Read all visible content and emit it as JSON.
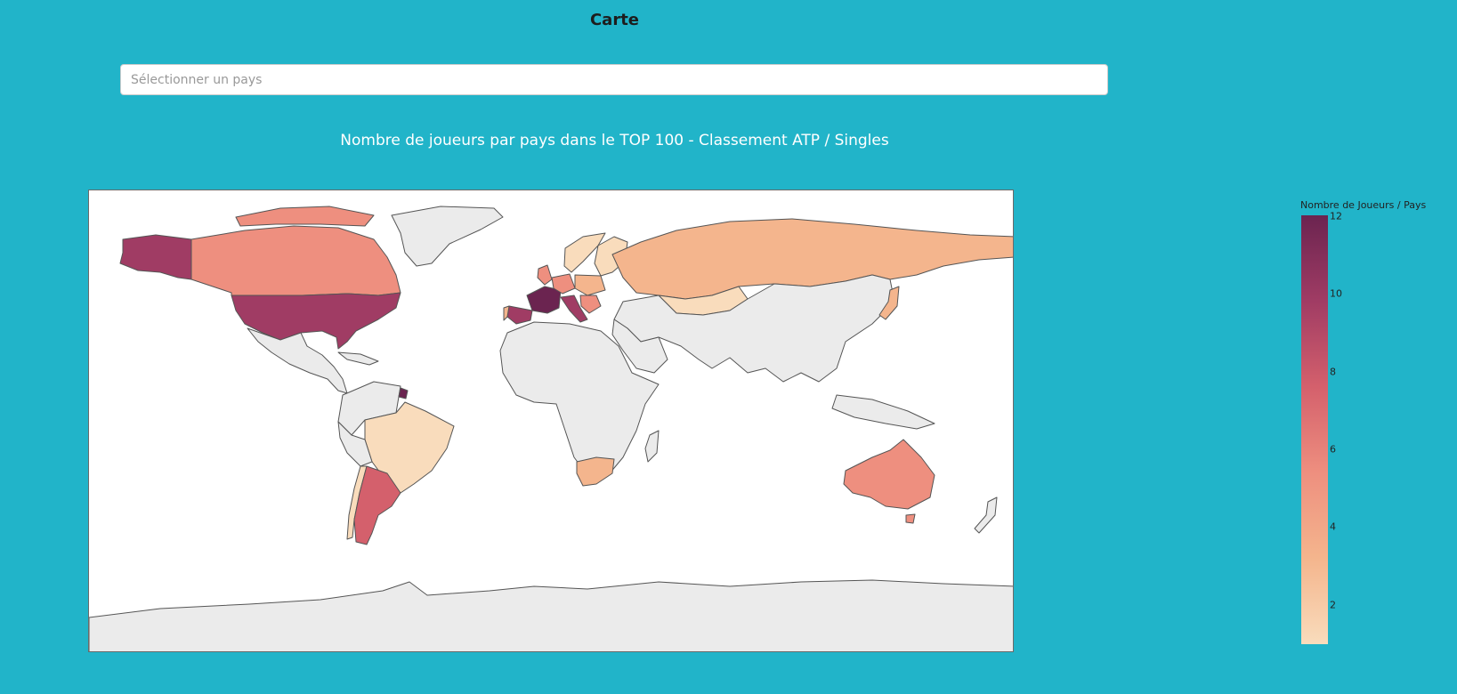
{
  "page": {
    "title": "Carte"
  },
  "country_select": {
    "placeholder": "Sélectionner un pays",
    "value": ""
  },
  "map": {
    "title": "Nombre de joueurs par pays dans le TOP 100 - Classement ATP / Singles",
    "projection": "equirectangular world choropleth",
    "colorscale": [
      "#f9dcbc",
      "#f4b58d",
      "#ee8f7f",
      "#d4606c",
      "#a03c64",
      "#6b2450"
    ],
    "no_data_color": "#ebebeb",
    "colorbar": {
      "title": "Nombre de Joueurs / Pays",
      "range": [
        1,
        12
      ],
      "ticks": [
        "12",
        "10",
        "8",
        "6",
        "4",
        "2"
      ]
    },
    "country_values": {
      "France": 12,
      "Spain": 11,
      "United States": 10,
      "Italy": 10,
      "Argentina": 6,
      "Australia": 5,
      "Canada": 4,
      "Serbia": 4,
      "Germany": 4,
      "United Kingdom": 4,
      "Russia": 3,
      "South Africa": 3,
      "Japan": 3,
      "Kazakhstan": 2,
      "Brazil": 1,
      "Chile": 1,
      "Norway": 1,
      "Finland": 1,
      "Denmark": 1,
      "Poland": 1
    }
  }
}
